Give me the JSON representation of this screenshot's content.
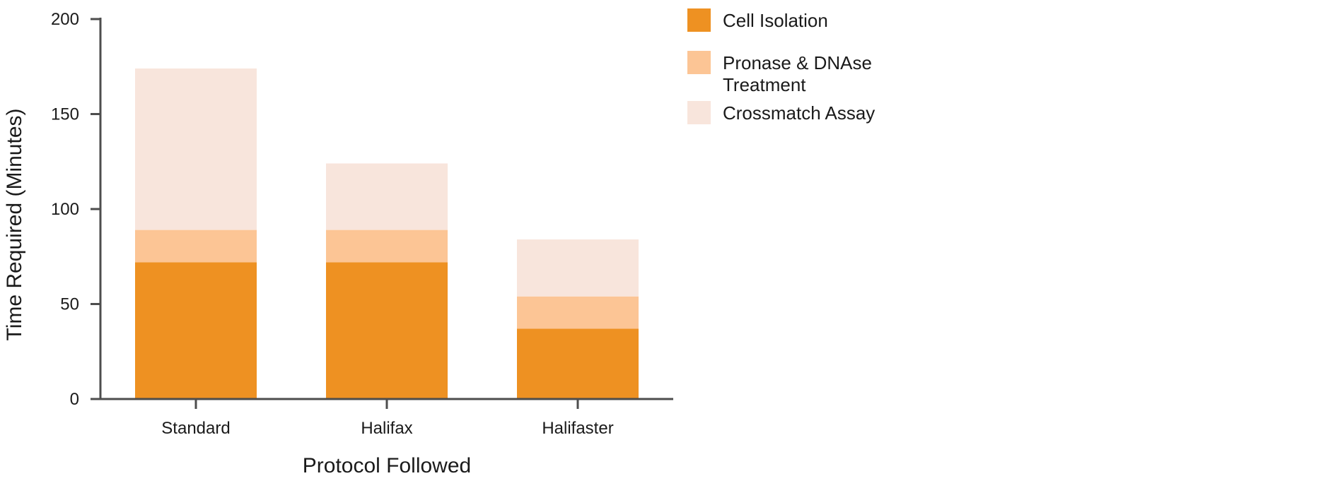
{
  "chart_data": {
    "type": "bar",
    "stacked": true,
    "categories": [
      "Standard",
      "Halifax",
      "Halifaster"
    ],
    "series": [
      {
        "name": "Cell Isolation",
        "color": "#ee9122",
        "values": [
          72,
          72,
          37
        ]
      },
      {
        "name": "Pronase & DNAse Treatment",
        "color": "#fcc595",
        "values": [
          17,
          17,
          17
        ]
      },
      {
        "name": "Crossmatch Assay",
        "color": "#f8e5dc",
        "values": [
          85,
          35,
          30
        ]
      }
    ],
    "title": "",
    "xlabel": "Protocol Followed",
    "ylabel": "Time Required (Minutes)",
    "ylim": [
      0,
      200
    ],
    "yticks": [
      0,
      50,
      100,
      150,
      200
    ],
    "grid": false,
    "legend_position": "right",
    "legend_lines": [
      [
        "Cell Isolation"
      ],
      [
        "Pronase & DNAse",
        "Treatment"
      ],
      [
        "Crossmatch Assay"
      ]
    ],
    "axis_color": "#4d4d4d"
  }
}
